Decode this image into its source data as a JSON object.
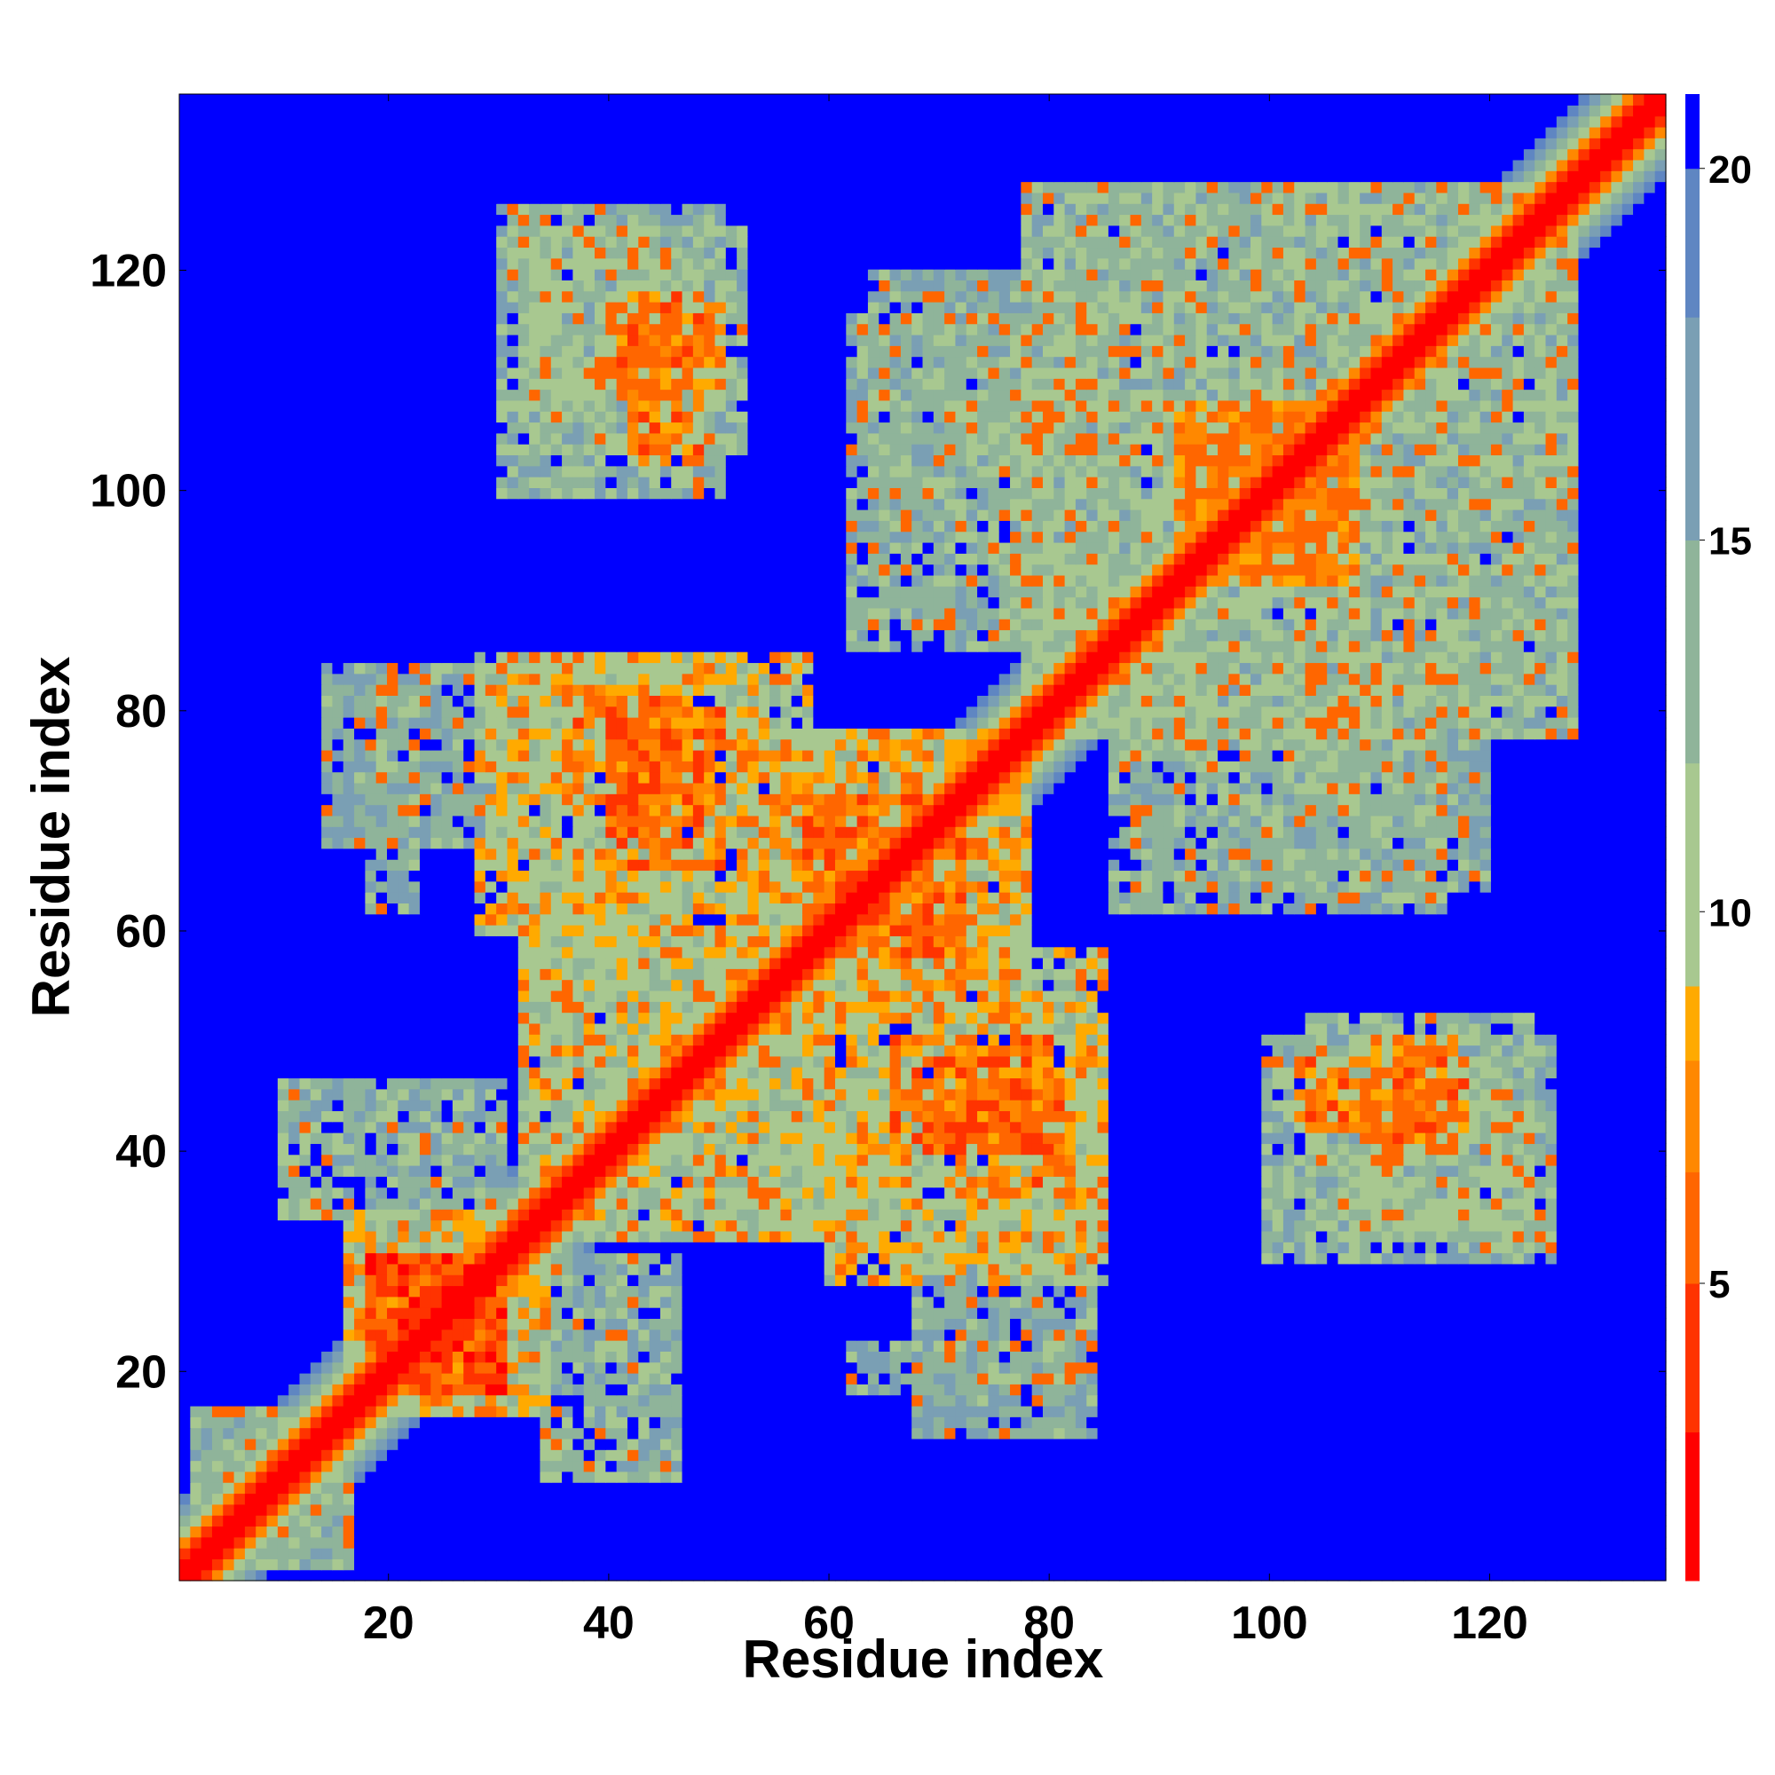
{
  "chart_data": {
    "type": "heatmap",
    "title": "",
    "xlabel": "Residue index",
    "ylabel": "Residue index",
    "n_residues": 136,
    "xlim": [
      1,
      136
    ],
    "ylim": [
      1,
      136
    ],
    "x_ticks": [
      20,
      40,
      60,
      80,
      100,
      120
    ],
    "y_ticks": [
      20,
      40,
      60,
      80,
      100,
      120
    ],
    "colorbar": {
      "range": [
        1,
        21
      ],
      "ticks": [
        5,
        10,
        15,
        20
      ],
      "colors": [
        "#ff0000",
        "#ff3300",
        "#ff6600",
        "#ff8800",
        "#ffaa00",
        "#a8c890",
        "#8fb49a",
        "#7a9fb4",
        "#5f86c2",
        "#0000ff"
      ],
      "bounds": [
        1,
        3,
        5,
        6.5,
        8,
        9,
        12,
        15,
        18,
        20,
        21
      ]
    },
    "contact_map": {
      "description_values": "distance values; symmetric matrix",
      "diagonal_value": 1,
      "blocks": [
        {
          "i": [
            2,
            16
          ],
          "j": [
            2,
            16
          ],
          "value": 14
        },
        {
          "i": [
            16,
            34
          ],
          "j": [
            16,
            34
          ],
          "value": 11
        },
        {
          "i": [
            18,
            30
          ],
          "j": [
            18,
            30
          ],
          "value": 6
        },
        {
          "i": [
            32,
            60
          ],
          "j": [
            32,
            60
          ],
          "value": 12
        },
        {
          "i": [
            52,
            78
          ],
          "j": [
            52,
            78
          ],
          "value": 11
        },
        {
          "i": [
            58,
            72
          ],
          "j": [
            58,
            72
          ],
          "value": 8
        },
        {
          "i": [
            78,
            128
          ],
          "j": [
            78,
            128
          ],
          "value": 14
        },
        {
          "i": [
            92,
            108
          ],
          "j": [
            92,
            108
          ],
          "value": 9
        },
        {
          "i": [
            28,
            58
          ],
          "j": [
            60,
            85
          ],
          "value": 11
        },
        {
          "i": [
            40,
            50
          ],
          "j": [
            66,
            80
          ],
          "value": 7
        },
        {
          "i": [
            30,
            50
          ],
          "j": [
            100,
            126
          ],
          "value": 14
        },
        {
          "i": [
            42,
            48
          ],
          "j": [
            103,
            116
          ],
          "value": 8
        },
        {
          "i": [
            60,
            85
          ],
          "j": [
            30,
            48
          ],
          "value": 12
        },
        {
          "i": [
            72,
            82
          ],
          "j": [
            36,
            46
          ],
          "value": 8
        },
        {
          "i": [
            104,
            124
          ],
          "j": [
            32,
            52
          ],
          "value": 13
        },
        {
          "i": [
            110,
            118
          ],
          "j": [
            40,
            50
          ],
          "value": 8
        },
        {
          "i": [
            86,
            116
          ],
          "j": [
            62,
            86
          ],
          "value": 14
        },
        {
          "i": [
            14,
            32
          ],
          "j": [
            68,
            84
          ],
          "value": 15
        },
        {
          "i": [
            62,
            84
          ],
          "j": [
            18,
            22
          ],
          "value": 15
        },
        {
          "i": [
            34,
            46
          ],
          "j": [
            10,
            30
          ],
          "value": 14
        },
        {
          "i": [
            64,
            84
          ],
          "j": [
            98,
            120
          ],
          "value": 15
        }
      ]
    }
  }
}
